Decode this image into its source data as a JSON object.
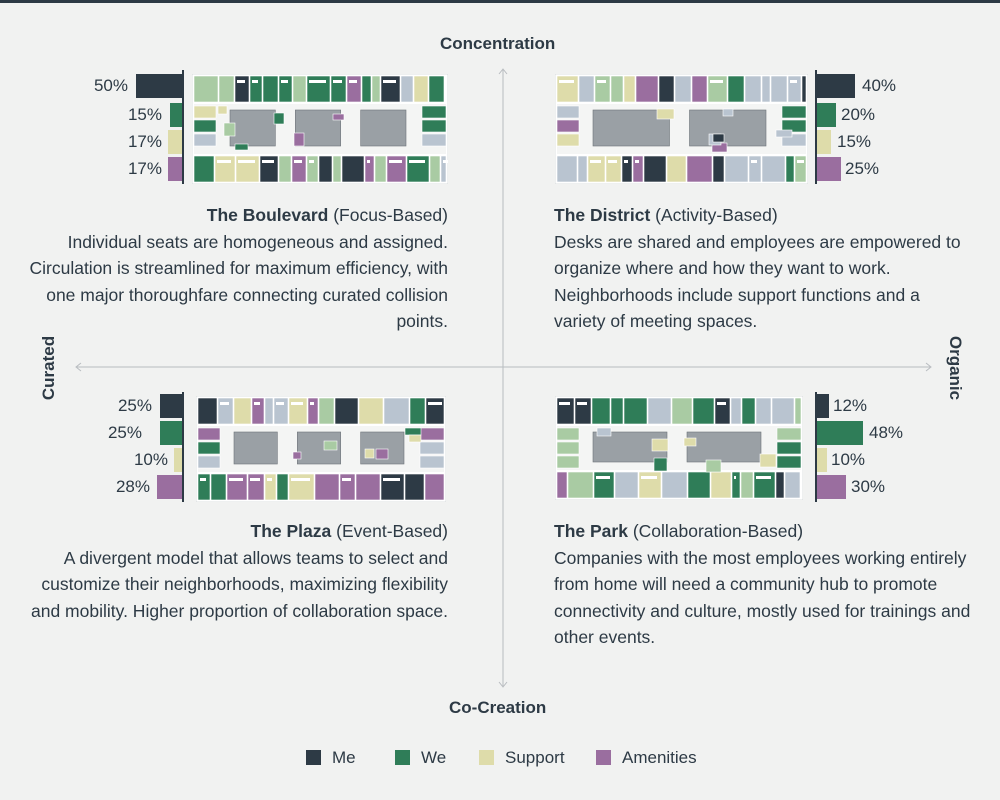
{
  "axes": {
    "top": "Concentration",
    "bottom": "Co-Creation",
    "left": "Curated",
    "right": "Organic"
  },
  "colors": {
    "me": "#2d3a45",
    "we": "#2f7d58",
    "support": "#dedcaa",
    "amenities": "#9a6e9f",
    "grey": "#9aa0a5",
    "lightblue": "#b9c4d0",
    "lightgreen": "#a9cba3",
    "ink": "#2d3a45"
  },
  "legend": [
    {
      "key": "me",
      "label": "Me"
    },
    {
      "key": "we",
      "label": "We"
    },
    {
      "key": "support",
      "label": "Support"
    },
    {
      "key": "amenities",
      "label": "Amenities"
    }
  ],
  "quadrants": [
    {
      "id": "boulevard",
      "name": "The Boulevard",
      "type": "(Focus-Based)",
      "description": "Individual seats are homogeneous and assigned. Circulation is streamlined for maximum efficiency, with one major thoroughfare connecting curated collision points.",
      "bars": [
        {
          "key": "me",
          "value": 50,
          "label": "50%"
        },
        {
          "key": "we",
          "value": 15,
          "label": "15%"
        },
        {
          "key": "support",
          "value": 17,
          "label": "17%"
        },
        {
          "key": "amenities",
          "value": 17,
          "label": "17%"
        }
      ]
    },
    {
      "id": "district",
      "name": "The District",
      "type": "(Activity-Based)",
      "description": "Desks are shared and employees are empowered to organize where and how they want to work. Neighborhoods include support functions and a variety of meeting spaces.",
      "bars": [
        {
          "key": "me",
          "value": 40,
          "label": "40%"
        },
        {
          "key": "we",
          "value": 20,
          "label": "20%"
        },
        {
          "key": "support",
          "value": 15,
          "label": "15%"
        },
        {
          "key": "amenities",
          "value": 25,
          "label": "25%"
        }
      ]
    },
    {
      "id": "plaza",
      "name": "The Plaza",
      "type": "(Event-Based)",
      "description": "A divergent model that allows teams to select and customize their neighborhoods, maximizing flexibility and mobility. Higher proportion of collaboration space.",
      "bars": [
        {
          "key": "me",
          "value": 25,
          "label": "25%"
        },
        {
          "key": "we",
          "value": 25,
          "label": "25%"
        },
        {
          "key": "support",
          "value": 10,
          "label": "10%"
        },
        {
          "key": "amenities",
          "value": 28,
          "label": "28%"
        }
      ]
    },
    {
      "id": "park",
      "name": "The Park",
      "type": "(Collaboration-Based)",
      "description": "Companies with the most employees working entirely from home will need a community hub to promote connectivity and culture, mostly used for trainings and other events.",
      "bars": [
        {
          "key": "me",
          "value": 12,
          "label": "12%"
        },
        {
          "key": "we",
          "value": 48,
          "label": "48%"
        },
        {
          "key": "support",
          "value": 10,
          "label": "10%"
        },
        {
          "key": "amenities",
          "value": 30,
          "label": "30%"
        }
      ]
    }
  ]
}
